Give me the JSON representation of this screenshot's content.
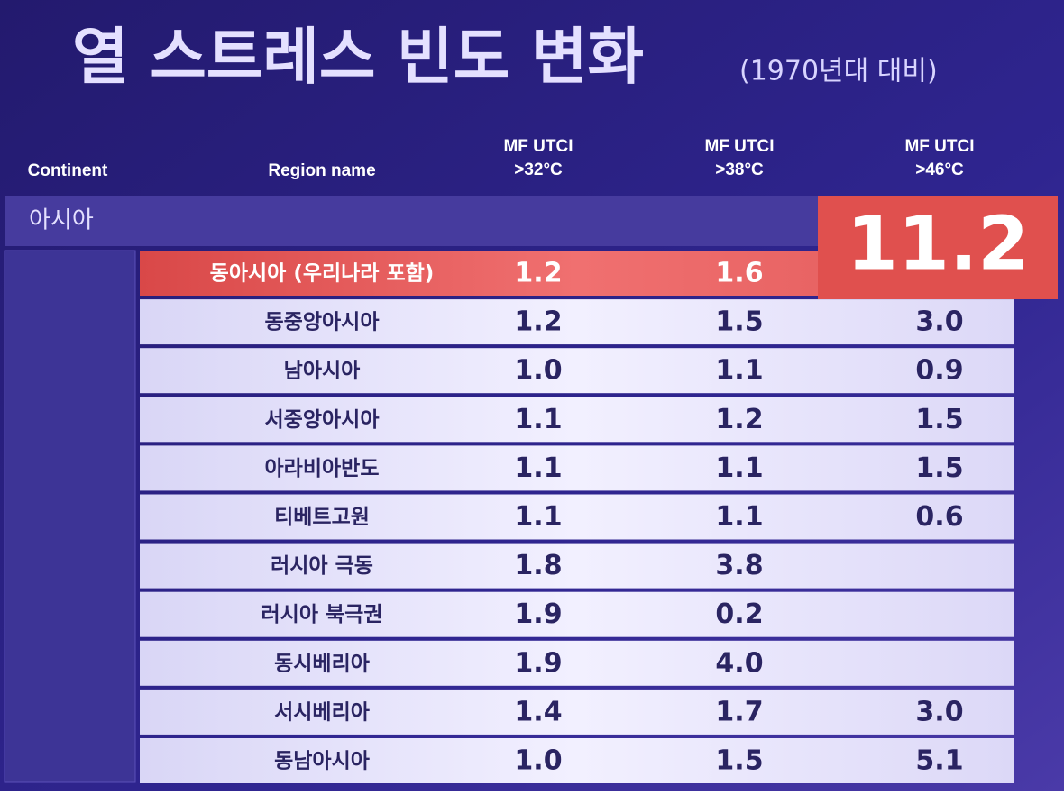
{
  "title": "열 스트레스 빈도 변화",
  "subtitle": "(1970년대 대비)",
  "table": {
    "headers": [
      [
        "Continent"
      ],
      [
        "Region name"
      ],
      [
        "MF UTCI",
        ">32°C"
      ],
      [
        "MF UTCI",
        ">38°C"
      ],
      [
        "MF UTCI",
        ">46°C"
      ]
    ],
    "continent": "아시아",
    "highlight": "11.2",
    "rows": [
      [
        "동아시아 (우리나라 포함)",
        "1.2",
        "1.6",
        null
      ],
      [
        "동중앙아시아",
        "1.2",
        "1.5",
        "3.0"
      ],
      [
        "남아시아",
        "1.0",
        "1.1",
        "0.9"
      ],
      [
        "서중앙아시아",
        "1.1",
        "1.2",
        "1.5"
      ],
      [
        "아라비아반도",
        "1.1",
        "1.1",
        "1.5"
      ],
      [
        "티베트고원",
        "1.1",
        "1.1",
        "0.6"
      ],
      [
        "러시아 극동",
        "1.8",
        "3.8",
        null
      ],
      [
        "러시아 북극권",
        "1.9",
        "0.2",
        null
      ],
      [
        "동시베리아",
        "1.9",
        "4.0",
        null
      ],
      [
        "서시베리아",
        "1.4",
        "1.7",
        "3.0"
      ],
      [
        "동남아시아",
        "1.0",
        "1.5",
        "5.1"
      ]
    ]
  }
}
